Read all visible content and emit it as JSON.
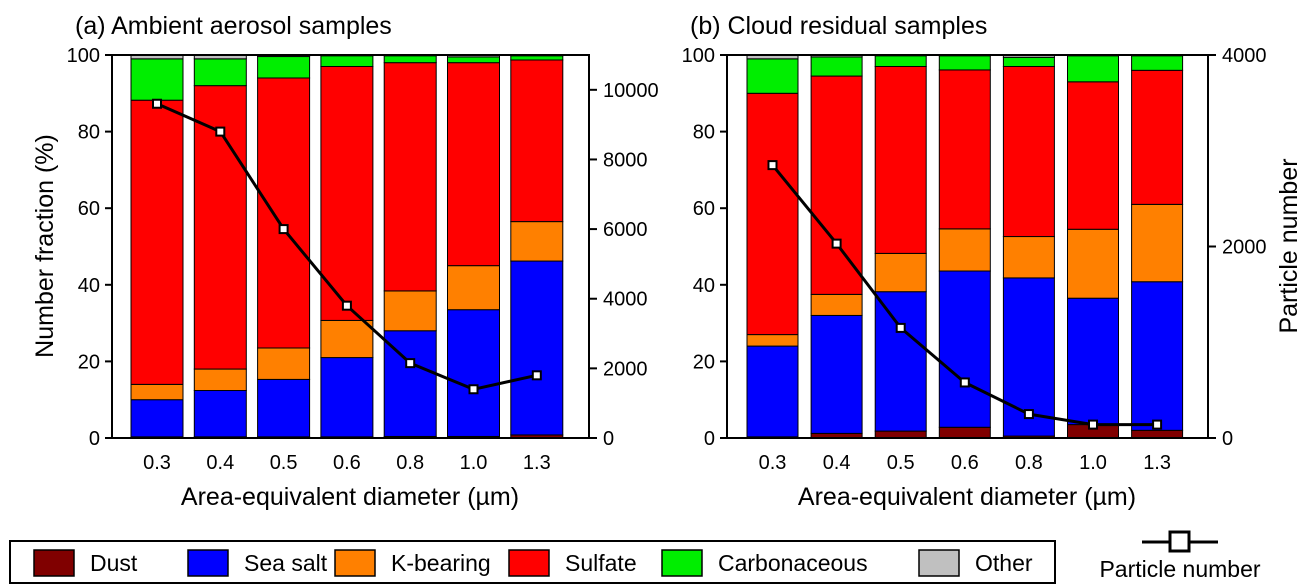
{
  "legend": {
    "items": [
      {
        "label": "Dust",
        "color": "#800000"
      },
      {
        "label": "Sea salt",
        "color": "#0000ff"
      },
      {
        "label": "K-bearing",
        "color": "#ff8000"
      },
      {
        "label": "Sulfate",
        "color": "#ff0000"
      },
      {
        "label": "Carbonaceous",
        "color": "#00ee00"
      },
      {
        "label": "Other",
        "color": "#c0c0c0"
      }
    ],
    "line_label": "Particle number"
  },
  "chart_data": [
    {
      "type": "bar",
      "stacked": true,
      "title": "(a) Ambient aerosol samples",
      "xlabel": "Area-equivalent diameter (µm)",
      "ylabel": "Number fraction (%)",
      "y2label": "",
      "categories": [
        "0.3",
        "0.4",
        "0.5",
        "0.6",
        "0.8",
        "1.0",
        "1.3"
      ],
      "x_ticks": [
        "0.3",
        "0.4",
        "0.5",
        "0.6",
        "0.8",
        "1.0",
        "1.3"
      ],
      "ylim": [
        0,
        100
      ],
      "y_ticks": [
        0,
        20,
        40,
        60,
        80,
        100
      ],
      "y2lim": [
        0,
        11000
      ],
      "y2_ticks": [
        0,
        2000,
        4000,
        6000,
        8000,
        10000
      ],
      "series": [
        {
          "name": "Dust",
          "color": "#800000",
          "values": [
            0.3,
            0.3,
            0.3,
            0.3,
            0.4,
            0.4,
            0.8
          ]
        },
        {
          "name": "Sea salt",
          "color": "#0000ff",
          "values": [
            9.7,
            12.1,
            15.0,
            20.7,
            27.6,
            33.1,
            45.4
          ]
        },
        {
          "name": "K-bearing",
          "color": "#ff8000",
          "values": [
            4.0,
            5.6,
            8.2,
            9.7,
            10.4,
            11.5,
            10.3
          ]
        },
        {
          "name": "Sulfate",
          "color": "#ff0000",
          "values": [
            74.2,
            74.0,
            70.5,
            66.3,
            59.6,
            53.0,
            42.2
          ]
        },
        {
          "name": "Carbonaceous",
          "color": "#00ee00",
          "values": [
            10.8,
            7.0,
            5.6,
            2.8,
            1.8,
            1.5,
            1.1
          ]
        },
        {
          "name": "Other",
          "color": "#c0c0c0",
          "values": [
            1.0,
            1.0,
            0.4,
            0.2,
            0.2,
            0.5,
            0.2
          ]
        }
      ],
      "line_series": {
        "name": "Particle number",
        "values": [
          9600,
          8800,
          6000,
          3800,
          2150,
          1400,
          1800
        ]
      }
    },
    {
      "type": "bar",
      "stacked": true,
      "title": "(b) Cloud residual samples",
      "xlabel": "Area-equivalent diameter (µm)",
      "ylabel": "",
      "y2label": "Particle number",
      "categories": [
        "0.3",
        "0.4",
        "0.5",
        "0.6",
        "0.8",
        "1.0",
        "1.3"
      ],
      "x_ticks": [
        "0.3",
        "0.4",
        "0.5",
        "0.6",
        "0.8",
        "1.0",
        "1.3"
      ],
      "ylim": [
        0,
        100
      ],
      "y_ticks": [
        0,
        20,
        40,
        60,
        80,
        100
      ],
      "y2lim": [
        0,
        4000
      ],
      "y2_ticks": [
        0,
        2000,
        4000
      ],
      "series": [
        {
          "name": "Dust",
          "color": "#800000",
          "values": [
            0.3,
            1.2,
            1.8,
            2.8,
            0.5,
            3.5,
            2.0
          ]
        },
        {
          "name": "Sea salt",
          "color": "#0000ff",
          "values": [
            23.7,
            30.8,
            36.4,
            40.8,
            41.3,
            33.0,
            38.8
          ]
        },
        {
          "name": "K-bearing",
          "color": "#ff8000",
          "values": [
            3.0,
            5.5,
            10.0,
            11.0,
            10.8,
            18.0,
            20.2
          ]
        },
        {
          "name": "Sulfate",
          "color": "#ff0000",
          "values": [
            63.0,
            57.0,
            48.8,
            41.5,
            44.4,
            38.5,
            35.0
          ]
        },
        {
          "name": "Carbonaceous",
          "color": "#00ee00",
          "values": [
            9.0,
            5.0,
            2.8,
            3.7,
            2.4,
            6.8,
            3.8
          ]
        },
        {
          "name": "Other",
          "color": "#c0c0c0",
          "values": [
            1.0,
            0.5,
            0.2,
            0.2,
            0.6,
            0.2,
            0.2
          ]
        }
      ],
      "line_series": {
        "name": "Particle number",
        "values": [
          2850,
          2030,
          1150,
          580,
          250,
          140,
          140
        ]
      }
    }
  ]
}
